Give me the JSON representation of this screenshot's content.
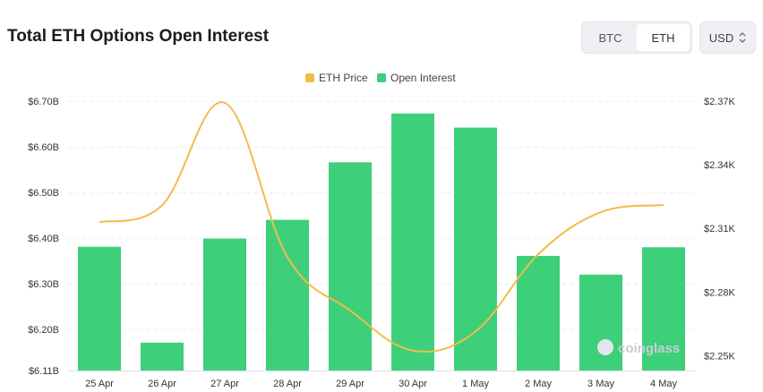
{
  "header": {
    "title": "Total ETH Options Open Interest",
    "asset_options": [
      "BTC",
      "ETH"
    ],
    "selected_asset": "ETH",
    "currency": "USD"
  },
  "watermark": "coinglass",
  "chart_data": {
    "type": "bar",
    "title": "Total ETH Options Open Interest",
    "categories": [
      "25 Apr",
      "26 Apr",
      "27 Apr",
      "28 Apr",
      "29 Apr",
      "30 Apr",
      "1 May",
      "2 May",
      "3 May",
      "4 May"
    ],
    "legend": [
      "ETH Price",
      "Open Interest"
    ],
    "legend_placement": "top-center",
    "grid": true,
    "colors": {
      "open_interest": "#3ecf7a",
      "eth_price": "#f0bd4a"
    },
    "left_axis": {
      "ticks": [
        "$6.11B",
        "$6.20B",
        "$6.30B",
        "$6.40B",
        "$6.50B",
        "$6.60B",
        "$6.70B"
      ],
      "tick_values": [
        6.11,
        6.2,
        6.3,
        6.4,
        6.5,
        6.6,
        6.7
      ],
      "ylim": [
        6.11,
        6.7
      ]
    },
    "right_axis": {
      "ticks": [
        "$2.25K",
        "$2.28K",
        "$2.31K",
        "$2.34K",
        "$2.37K"
      ],
      "tick_values": [
        2.25,
        2.28,
        2.31,
        2.34,
        2.37
      ],
      "ylim": [
        2.243,
        2.37
      ]
    },
    "series": [
      {
        "name": "Open Interest",
        "type": "bar",
        "axis": "left",
        "unit": "B USD",
        "values": [
          6.381,
          6.171,
          6.399,
          6.44,
          6.566,
          6.673,
          6.642,
          6.361,
          6.32,
          6.38
        ]
      },
      {
        "name": "ETH Price",
        "type": "line",
        "axis": "right",
        "unit": "K USD",
        "values": [
          2.3129,
          2.3209,
          2.3692,
          2.2964,
          2.2713,
          2.2524,
          2.2614,
          2.2978,
          2.3177,
          2.321
        ]
      }
    ]
  }
}
